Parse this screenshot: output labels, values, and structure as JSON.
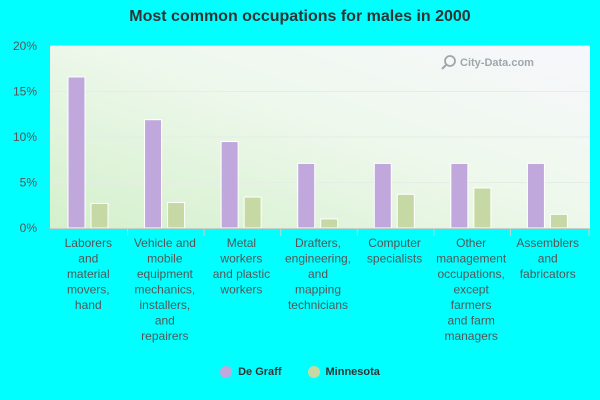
{
  "chart_data": {
    "type": "bar",
    "title": "Most common occupations for males in 2000",
    "categories": [
      [
        "Laborers",
        "and",
        "material",
        "movers,",
        "hand"
      ],
      [
        "Vehicle and",
        "mobile",
        "equipment",
        "mechanics,",
        "installers,",
        "and",
        "repairers"
      ],
      [
        "Metal",
        "workers",
        "and plastic",
        "workers"
      ],
      [
        "Drafters,",
        "engineering,",
        "and",
        "mapping",
        "technicians"
      ],
      [
        "Computer",
        "specialists"
      ],
      [
        "Other",
        "management",
        "occupations,",
        "except",
        "farmers",
        "and farm",
        "managers"
      ],
      [
        "Assemblers",
        "and",
        "fabricators"
      ]
    ],
    "series": [
      {
        "name": "De Graff",
        "color": "#c0a8dc",
        "values": [
          16.6,
          11.9,
          9.5,
          7.1,
          7.1,
          7.1,
          7.1
        ]
      },
      {
        "name": "Minnesota",
        "color": "#c6d9a4",
        "values": [
          2.7,
          2.8,
          3.4,
          1.0,
          3.7,
          4.4,
          1.5
        ]
      }
    ],
    "y_ticks": [
      "0%",
      "5%",
      "10%",
      "15%",
      "20%"
    ],
    "ylim": [
      0,
      20
    ],
    "xlabel": "",
    "ylabel": "",
    "grid": true,
    "legend_position": "bottom-center"
  },
  "watermark": {
    "text": "City-Data.com",
    "icon": "search-icon"
  }
}
